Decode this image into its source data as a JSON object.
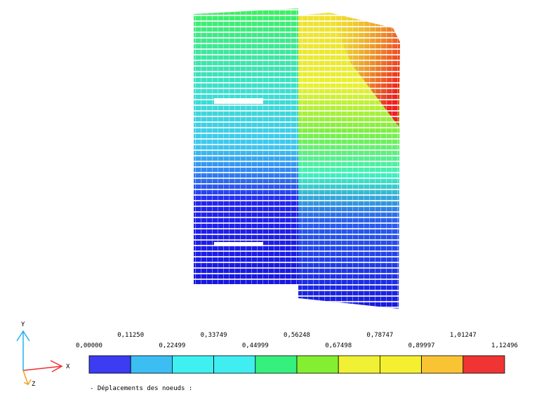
{
  "axes": {
    "y": "Y",
    "x": "X",
    "z": "Z"
  },
  "legend": {
    "labels": [
      "0,00000",
      "0,11250",
      "0,22499",
      "0,33749",
      "0,44999",
      "0,56248",
      "0,67498",
      "0,78747",
      "0,89997",
      "1,01247",
      "1,12496"
    ],
    "colors": [
      "#3c3cf2",
      "#3cbef2",
      "#3ef0f0",
      "#40eef2",
      "#36f07e",
      "#84ee30",
      "#f0f034",
      "#f4f030",
      "#f8c434",
      "#f03434"
    ]
  },
  "caption": "- Déplacements des noeuds :"
}
